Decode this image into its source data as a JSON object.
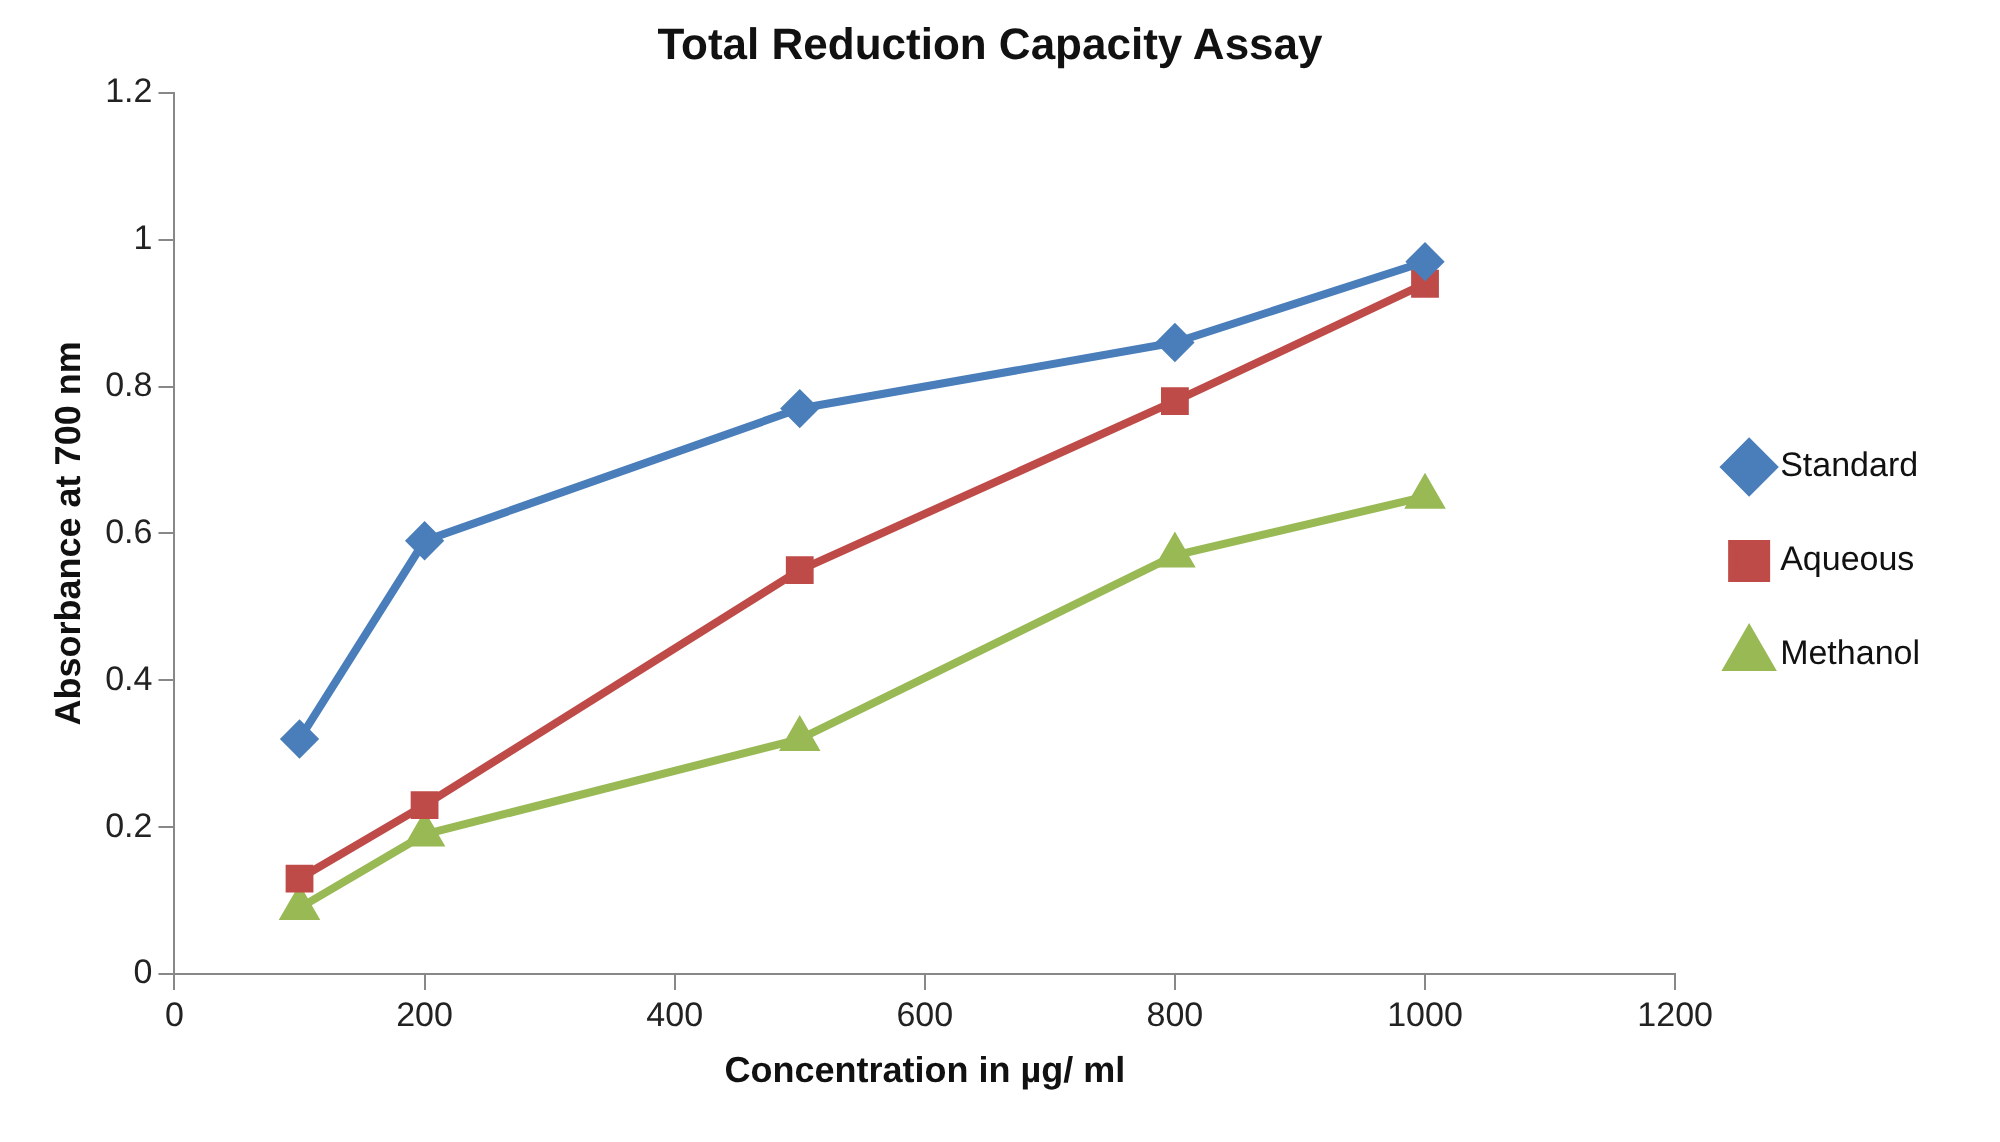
{
  "chart_data": {
    "type": "line",
    "title": "Total Reduction Capacity Assay",
    "xlabel": "Concentration in µg/ ml",
    "ylabel": "Absorbance at 700 nm",
    "x": [
      100,
      200,
      500,
      800,
      1000
    ],
    "series": [
      {
        "name": "Standard",
        "color": "#4a7ebb",
        "marker": "diamond",
        "values": [
          0.32,
          0.59,
          0.77,
          0.86,
          0.97
        ]
      },
      {
        "name": "Aqueous",
        "color": "#be4b48",
        "marker": "square",
        "values": [
          0.13,
          0.23,
          0.55,
          0.78,
          0.94
        ]
      },
      {
        "name": "Methanol",
        "color": "#98b954",
        "marker": "triangle",
        "values": [
          0.09,
          0.19,
          0.32,
          0.57,
          0.65
        ]
      }
    ],
    "xlim": [
      0,
      1200
    ],
    "xticks": [
      0,
      200,
      400,
      600,
      800,
      1000,
      1200
    ],
    "ylim": [
      0,
      1.2
    ],
    "yticks": [
      0,
      0.2,
      0.4,
      0.6,
      0.8,
      1,
      1.2
    ],
    "legend": "right",
    "line_style": "solid"
  }
}
